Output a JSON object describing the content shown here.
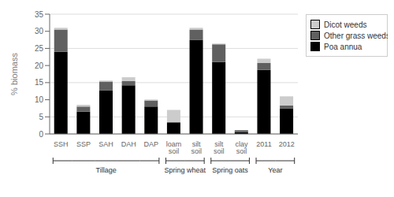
{
  "chart_data": {
    "type": "bar",
    "stacked": true,
    "categories": [
      "SSH",
      "SSP",
      "SAH",
      "DAH",
      "DAP",
      "loam\nsoil",
      "silt\nsoil",
      "silt\nsoil",
      "clay\nsoil",
      "2011",
      "2012"
    ],
    "series": [
      {
        "name": "Poa annua",
        "color": "#000000",
        "values": [
          24.0,
          6.5,
          12.8,
          14.2,
          8.0,
          3.2,
          27.5,
          21.0,
          0.6,
          18.7,
          7.5
        ]
      },
      {
        "name": "Other grass weeds",
        "color": "#606060",
        "values": [
          6.5,
          1.5,
          2.5,
          1.2,
          1.8,
          0.3,
          3.0,
          5.2,
          0.5,
          2.0,
          0.8
        ]
      },
      {
        "name": "Dicot weeds",
        "color": "#cccccc",
        "values": [
          0.5,
          0.5,
          0.3,
          1.2,
          0.3,
          3.5,
          0.5,
          0.2,
          0.0,
          1.3,
          2.7
        ]
      }
    ],
    "groups": [
      {
        "label": "Tillage",
        "indices": [
          0,
          1,
          2,
          3,
          4
        ]
      },
      {
        "label": "Spring wheat",
        "indices": [
          5,
          6
        ]
      },
      {
        "label": "Spring oats",
        "indices": [
          7,
          8
        ]
      },
      {
        "label": "Year",
        "indices": [
          9,
          10
        ]
      }
    ],
    "ylabel": "% biomass",
    "ylim": [
      0,
      35
    ],
    "yticks": [
      0,
      5,
      10,
      15,
      20,
      25,
      30,
      35
    ],
    "grid": true,
    "legend": "right"
  }
}
